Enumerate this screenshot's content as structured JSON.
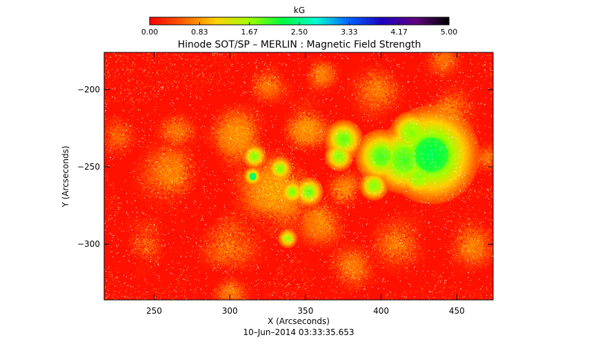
{
  "chart_data": {
    "type": "heatmap",
    "title": "Hinode SOT/SP – MERLIN : Magnetic Field Strength",
    "xlabel": "X (Arcseconds)",
    "ylabel": "Y (Arcseconds)",
    "timestamp": "10–Jun–2014 03:33:35.653",
    "xlim": [
      217,
      474
    ],
    "ylim": [
      -336,
      -176
    ],
    "x_ticks": [
      250,
      300,
      350,
      400,
      450
    ],
    "y_ticks": [
      -200,
      -250,
      -300
    ],
    "colorbar": {
      "label": "kG",
      "range": [
        0,
        5
      ],
      "ticks": [
        "0.00",
        "0.83",
        "1.67",
        "2.50",
        "3.33",
        "4.17",
        "5.00"
      ],
      "colors": [
        "#ff0000",
        "#ff6000",
        "#ffd000",
        "#a0ff00",
        "#00ff40",
        "#00ffd0",
        "#0060ff",
        "#2000c0",
        "#600080",
        "#000000"
      ]
    },
    "background_value": 0.1,
    "sunspots": [
      {
        "x": 433,
        "y": -242,
        "core": 2.3,
        "penumbra": 1.5,
        "radius": 20
      },
      {
        "x": 415,
        "y": -245,
        "core": 2.0,
        "penumbra": 1.4,
        "radius": 14
      },
      {
        "x": 400,
        "y": -243,
        "core": 2.0,
        "penumbra": 1.3,
        "radius": 11
      },
      {
        "x": 420,
        "y": -228,
        "core": 1.8,
        "penumbra": 1.3,
        "radius": 9
      },
      {
        "x": 425,
        "y": -255,
        "core": 1.8,
        "penumbra": 1.3,
        "radius": 9
      },
      {
        "x": 375,
        "y": -232,
        "core": 1.9,
        "penumbra": 1.2,
        "radius": 8
      },
      {
        "x": 372,
        "y": -243,
        "core": 1.8,
        "penumbra": 1.2,
        "radius": 6
      },
      {
        "x": 352,
        "y": -266,
        "core": 1.9,
        "penumbra": 1.2,
        "radius": 6
      },
      {
        "x": 316,
        "y": -243,
        "core": 1.8,
        "penumbra": 1.1,
        "radius": 5
      },
      {
        "x": 315,
        "y": -256,
        "core": 2.5,
        "penumbra": 1.1,
        "radius": 4
      },
      {
        "x": 333,
        "y": -251,
        "core": 1.8,
        "penumbra": 1.1,
        "radius": 5
      },
      {
        "x": 341,
        "y": -266,
        "core": 1.8,
        "penumbra": 1.1,
        "radius": 5
      },
      {
        "x": 338,
        "y": -296,
        "core": 1.7,
        "penumbra": 1.0,
        "radius": 4
      },
      {
        "x": 395,
        "y": -262,
        "core": 1.8,
        "penumbra": 1.2,
        "radius": 6
      }
    ],
    "plage_regions": [
      {
        "x": 330,
        "y": -265,
        "value": 1.0,
        "radius": 28
      },
      {
        "x": 305,
        "y": -230,
        "value": 0.9,
        "radius": 22
      },
      {
        "x": 350,
        "y": -225,
        "value": 0.9,
        "radius": 18
      },
      {
        "x": 262,
        "y": -255,
        "value": 0.8,
        "radius": 25
      },
      {
        "x": 300,
        "y": -300,
        "value": 0.8,
        "radius": 22
      },
      {
        "x": 245,
        "y": -300,
        "value": 0.75,
        "radius": 18
      },
      {
        "x": 265,
        "y": -225,
        "value": 0.75,
        "radius": 16
      },
      {
        "x": 410,
        "y": -300,
        "value": 0.8,
        "radius": 20
      },
      {
        "x": 460,
        "y": -300,
        "value": 0.8,
        "radius": 18
      },
      {
        "x": 445,
        "y": -215,
        "value": 0.8,
        "radius": 20
      },
      {
        "x": 398,
        "y": -200,
        "value": 0.75,
        "radius": 20
      },
      {
        "x": 325,
        "y": -195,
        "value": 0.75,
        "radius": 16
      },
      {
        "x": 360,
        "y": -190,
        "value": 0.8,
        "radius": 12
      },
      {
        "x": 440,
        "y": -180,
        "value": 0.75,
        "radius": 14
      },
      {
        "x": 300,
        "y": -330,
        "value": 0.75,
        "radius": 14
      },
      {
        "x": 380,
        "y": -315,
        "value": 0.75,
        "radius": 18
      },
      {
        "x": 225,
        "y": -230,
        "value": 0.7,
        "radius": 14
      },
      {
        "x": 470,
        "y": -245,
        "value": 0.75,
        "radius": 12
      },
      {
        "x": 360,
        "y": -285,
        "value": 0.85,
        "radius": 18
      },
      {
        "x": 375,
        "y": -265,
        "value": 0.85,
        "radius": 14
      }
    ]
  }
}
